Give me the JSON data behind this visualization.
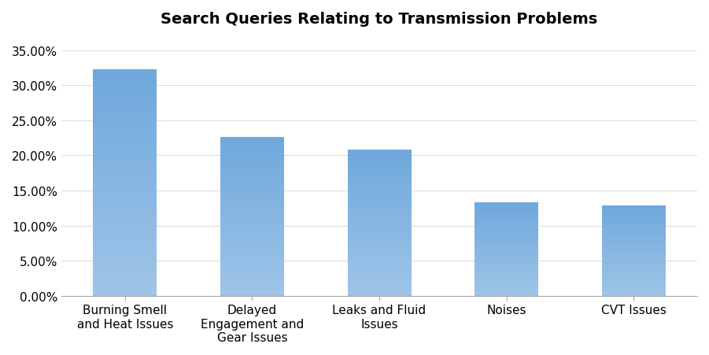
{
  "title": "Search Queries Relating to Transmission Problems",
  "categories": [
    "Burning Smell\nand Heat Issues",
    "Delayed\nEngagement and\nGear Issues",
    "Leaks and Fluid\nIssues",
    "Noises",
    "CVT Issues"
  ],
  "values": [
    0.322,
    0.226,
    0.208,
    0.133,
    0.128
  ],
  "bar_color_top": "#6fa8dc",
  "bar_color_bottom": "#9fc5e8",
  "background_color": "#ffffff",
  "ylim": [
    0,
    0.37
  ],
  "yticks": [
    0.0,
    0.05,
    0.1,
    0.15,
    0.2,
    0.25,
    0.3,
    0.35
  ],
  "title_fontsize": 14,
  "tick_fontsize": 11,
  "xlabel_fontsize": 11
}
